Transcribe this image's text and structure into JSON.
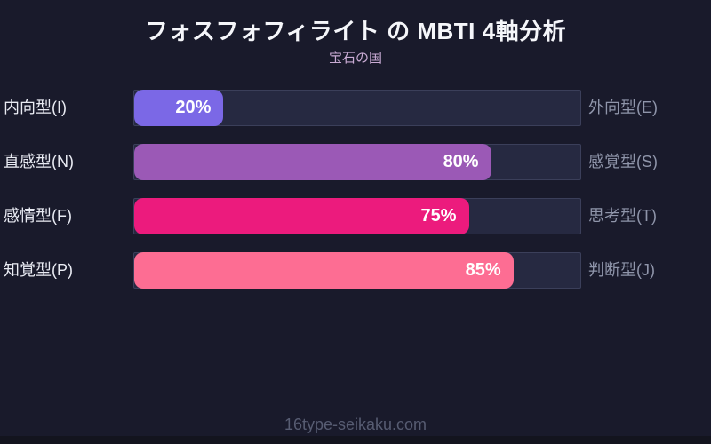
{
  "page_bg": "#191a2b",
  "header": {
    "title": "フォスフォフィライト の MBTI 4軸分析",
    "subtitle": "宝石の国"
  },
  "chart_data": {
    "type": "bar",
    "orientation": "horizontal",
    "title": "フォスフォフィライト の MBTI 4軸分析",
    "subtitle": "宝石の国",
    "xlim": [
      0,
      100
    ],
    "unit": "%",
    "track_color": "#262941",
    "track_border_color": "#3b3f5a",
    "rows": [
      {
        "left_label": "内向型(I)",
        "right_label": "外向型(E)",
        "value": 20,
        "value_label": "20%",
        "color": "#7b68e6"
      },
      {
        "left_label": "直感型(N)",
        "right_label": "感覚型(S)",
        "value": 80,
        "value_label": "80%",
        "color": "#9b59b6"
      },
      {
        "left_label": "感情型(F)",
        "right_label": "思考型(T)",
        "value": 75,
        "value_label": "75%",
        "color": "#ec1b7d"
      },
      {
        "left_label": "知覚型(P)",
        "right_label": "判断型(J)",
        "value": 85,
        "value_label": "85%",
        "color": "#fd6d93"
      }
    ]
  },
  "footer": {
    "watermark": "16type-seikaku.com"
  }
}
